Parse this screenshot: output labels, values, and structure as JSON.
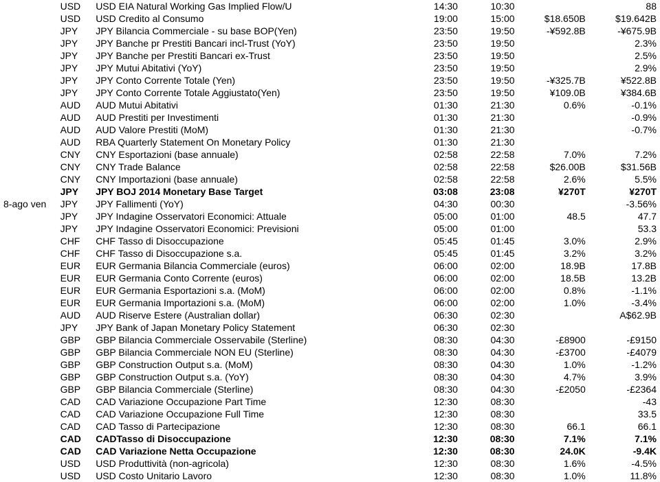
{
  "rows": [
    {
      "date": "",
      "cur": "USD",
      "desc": "USD EIA Natural Working Gas Implied Flow/U",
      "t1": "14:30",
      "t2": "10:30",
      "v1": "",
      "v2": "88",
      "bold": false
    },
    {
      "date": "",
      "cur": "USD",
      "desc": "USD Credito al Consumo",
      "t1": "19:00",
      "t2": "15:00",
      "v1": "$18.650B",
      "v2": "$19.642B",
      "bold": false
    },
    {
      "date": "",
      "cur": "JPY",
      "desc": "JPY Bilancia Commerciale - su base BOP(Yen)",
      "t1": "23:50",
      "t2": "19:50",
      "v1": "-¥592.8B",
      "v2": "-¥675.9B",
      "bold": false
    },
    {
      "date": "",
      "cur": "JPY",
      "desc": "JPY Banche pr Prestiti Bancari incl-Trust (YoY)",
      "t1": "23:50",
      "t2": "19:50",
      "v1": "",
      "v2": "2.3%",
      "bold": false
    },
    {
      "date": "",
      "cur": "JPY",
      "desc": "JPY Banche per Prestiti Bancari ex-Trust",
      "t1": "23:50",
      "t2": "19:50",
      "v1": "",
      "v2": "2.5%",
      "bold": false
    },
    {
      "date": "",
      "cur": "JPY",
      "desc": "JPY Mutui Abitativi (YoY)",
      "t1": "23:50",
      "t2": "19:50",
      "v1": "",
      "v2": "2.9%",
      "bold": false
    },
    {
      "date": "",
      "cur": "JPY",
      "desc": "JPY Conto Corrente Totale (Yen)",
      "t1": "23:50",
      "t2": "19:50",
      "v1": "-¥325.7B",
      "v2": "¥522.8B",
      "bold": false
    },
    {
      "date": "",
      "cur": "JPY",
      "desc": "JPY Conto Corrente Totale Aggiustato(Yen)",
      "t1": "23:50",
      "t2": "19:50",
      "v1": "¥109.0B",
      "v2": "¥384.6B",
      "bold": false
    },
    {
      "date": "",
      "cur": "AUD",
      "desc": "AUD Mutui Abitativi",
      "t1": "01:30",
      "t2": "21:30",
      "v1": "0.6%",
      "v2": "-0.1%",
      "bold": false
    },
    {
      "date": "",
      "cur": "AUD",
      "desc": "AUD Prestiti per Investimenti",
      "t1": "01:30",
      "t2": "21:30",
      "v1": "",
      "v2": "-0.9%",
      "bold": false
    },
    {
      "date": "",
      "cur": "AUD",
      "desc": "AUD Valore Prestiti (MoM)",
      "t1": "01:30",
      "t2": "21:30",
      "v1": "",
      "v2": "-0.7%",
      "bold": false
    },
    {
      "date": "",
      "cur": "AUD",
      "desc": "RBA Quarterly Statement On Monetary Policy",
      "t1": "01:30",
      "t2": "21:30",
      "v1": "",
      "v2": "",
      "bold": false
    },
    {
      "date": "",
      "cur": "CNY",
      "desc": "CNY Esportazioni (base annuale)",
      "t1": "02:58",
      "t2": "22:58",
      "v1": "7.0%",
      "v2": "7.2%",
      "bold": false
    },
    {
      "date": "",
      "cur": "CNY",
      "desc": "CNY Trade Balance",
      "t1": "02:58",
      "t2": "22:58",
      "v1": "$26.00B",
      "v2": "$31.56B",
      "bold": false
    },
    {
      "date": "",
      "cur": "CNY",
      "desc": "CNY Importazioni (base annuale)",
      "t1": "02:58",
      "t2": "22:58",
      "v1": "2.6%",
      "v2": "5.5%",
      "bold": false
    },
    {
      "date": "",
      "cur": "JPY",
      "desc": "JPY BOJ 2014 Monetary Base Target",
      "t1": "03:08",
      "t2": "23:08",
      "v1": "¥270T",
      "v2": "¥270T",
      "bold": true
    },
    {
      "date": "8-ago ven",
      "cur": "JPY",
      "desc": "JPY Fallimenti (YoY)",
      "t1": "04:30",
      "t2": "00:30",
      "v1": "",
      "v2": "-3.56%",
      "bold": false
    },
    {
      "date": "",
      "cur": "JPY",
      "desc": "JPY Indagine Osservatori Economici: Attuale",
      "t1": "05:00",
      "t2": "01:00",
      "v1": "48.5",
      "v2": "47.7",
      "bold": false
    },
    {
      "date": "",
      "cur": "JPY",
      "desc": "JPY Indagine Osservatori Economici: Previsioni",
      "t1": "05:00",
      "t2": "01:00",
      "v1": "",
      "v2": "53.3",
      "bold": false
    },
    {
      "date": "",
      "cur": "CHF",
      "desc": "CHF Tasso di Disoccupazione",
      "t1": "05:45",
      "t2": "01:45",
      "v1": "3.0%",
      "v2": "2.9%",
      "bold": false
    },
    {
      "date": "",
      "cur": "CHF",
      "desc": "CHF Tasso di Disoccupazione s.a.",
      "t1": "05:45",
      "t2": "01:45",
      "v1": "3.2%",
      "v2": "3.2%",
      "bold": false
    },
    {
      "date": "",
      "cur": "EUR",
      "desc": "EUR Germania Bilancia Commerciale (euros)",
      "t1": "06:00",
      "t2": "02:00",
      "v1": "18.9B",
      "v2": "17.8B",
      "bold": false
    },
    {
      "date": "",
      "cur": "EUR",
      "desc": "EUR Germania Conto Corrente (euros)",
      "t1": "06:00",
      "t2": "02:00",
      "v1": "18.5B",
      "v2": "13.2B",
      "bold": false
    },
    {
      "date": "",
      "cur": "EUR",
      "desc": "EUR Germania Esportazioni s.a. (MoM)",
      "t1": "06:00",
      "t2": "02:00",
      "v1": "0.8%",
      "v2": "-1.1%",
      "bold": false
    },
    {
      "date": "",
      "cur": "EUR",
      "desc": "EUR Germania Importazioni s.a. (MoM)",
      "t1": "06:00",
      "t2": "02:00",
      "v1": "1.0%",
      "v2": "-3.4%",
      "bold": false
    },
    {
      "date": "",
      "cur": "AUD",
      "desc": "AUD Riserve Estere (Australian dollar)",
      "t1": "06:30",
      "t2": "02:30",
      "v1": "",
      "v2": "A$62.9B",
      "bold": false
    },
    {
      "date": "",
      "cur": "JPY",
      "desc": "JPY Bank of Japan Monetary Policy Statement",
      "t1": "06:30",
      "t2": "02:30",
      "v1": "",
      "v2": "",
      "bold": false
    },
    {
      "date": "",
      "cur": "GBP",
      "desc": "GBP Bilancia Commerciale Osservabile (Sterline)",
      "t1": "08:30",
      "t2": "04:30",
      "v1": "-£8900",
      "v2": "-£9150",
      "bold": false
    },
    {
      "date": "",
      "cur": "GBP",
      "desc": "GBP Bilancia Commerciale NON EU (Sterline)",
      "t1": "08:30",
      "t2": "04:30",
      "v1": "-£3700",
      "v2": "-£4079",
      "bold": false
    },
    {
      "date": "",
      "cur": "GBP",
      "desc": "GBP Construction Output s.a. (MoM)",
      "t1": "08:30",
      "t2": "04:30",
      "v1": "1.0%",
      "v2": "-1.2%",
      "bold": false
    },
    {
      "date": "",
      "cur": "GBP",
      "desc": "GBP Construction Output s.a. (YoY)",
      "t1": "08:30",
      "t2": "04:30",
      "v1": "4.7%",
      "v2": "3.9%",
      "bold": false
    },
    {
      "date": "",
      "cur": "GBP",
      "desc": "GBP Bilancia Commerciale (Sterline)",
      "t1": "08:30",
      "t2": "04:30",
      "v1": "-£2050",
      "v2": "-£2364",
      "bold": false
    },
    {
      "date": "",
      "cur": "CAD",
      "desc": "CAD Variazione Occupazione Part Time",
      "t1": "12:30",
      "t2": "08:30",
      "v1": "",
      "v2": "-43",
      "bold": false
    },
    {
      "date": "",
      "cur": "CAD",
      "desc": "CAD Variazione Occupazione Full Time",
      "t1": "12:30",
      "t2": "08:30",
      "v1": "",
      "v2": "33.5",
      "bold": false
    },
    {
      "date": "",
      "cur": "CAD",
      "desc": "CAD Tasso di Partecipazione",
      "t1": "12:30",
      "t2": "08:30",
      "v1": "66.1",
      "v2": "66.1",
      "bold": false
    },
    {
      "date": "",
      "cur": "CAD",
      "desc": "CADTasso di Disoccupazione",
      "t1": "12:30",
      "t2": "08:30",
      "v1": "7.1%",
      "v2": "7.1%",
      "bold": true
    },
    {
      "date": "",
      "cur": "CAD",
      "desc": "CAD Variazione Netta Occupazione",
      "t1": "12:30",
      "t2": "08:30",
      "v1": "24.0K",
      "v2": "-9.4K",
      "bold": true
    },
    {
      "date": "",
      "cur": "USD",
      "desc": "USD Produttività (non-agricola)",
      "t1": "12:30",
      "t2": "08:30",
      "v1": "1.6%",
      "v2": "-4.5%",
      "bold": false
    },
    {
      "date": "",
      "cur": "USD",
      "desc": "USD Costo Unitario Lavoro",
      "t1": "12:30",
      "t2": "08:30",
      "v1": "1.0%",
      "v2": "11.8%",
      "bold": false
    }
  ]
}
